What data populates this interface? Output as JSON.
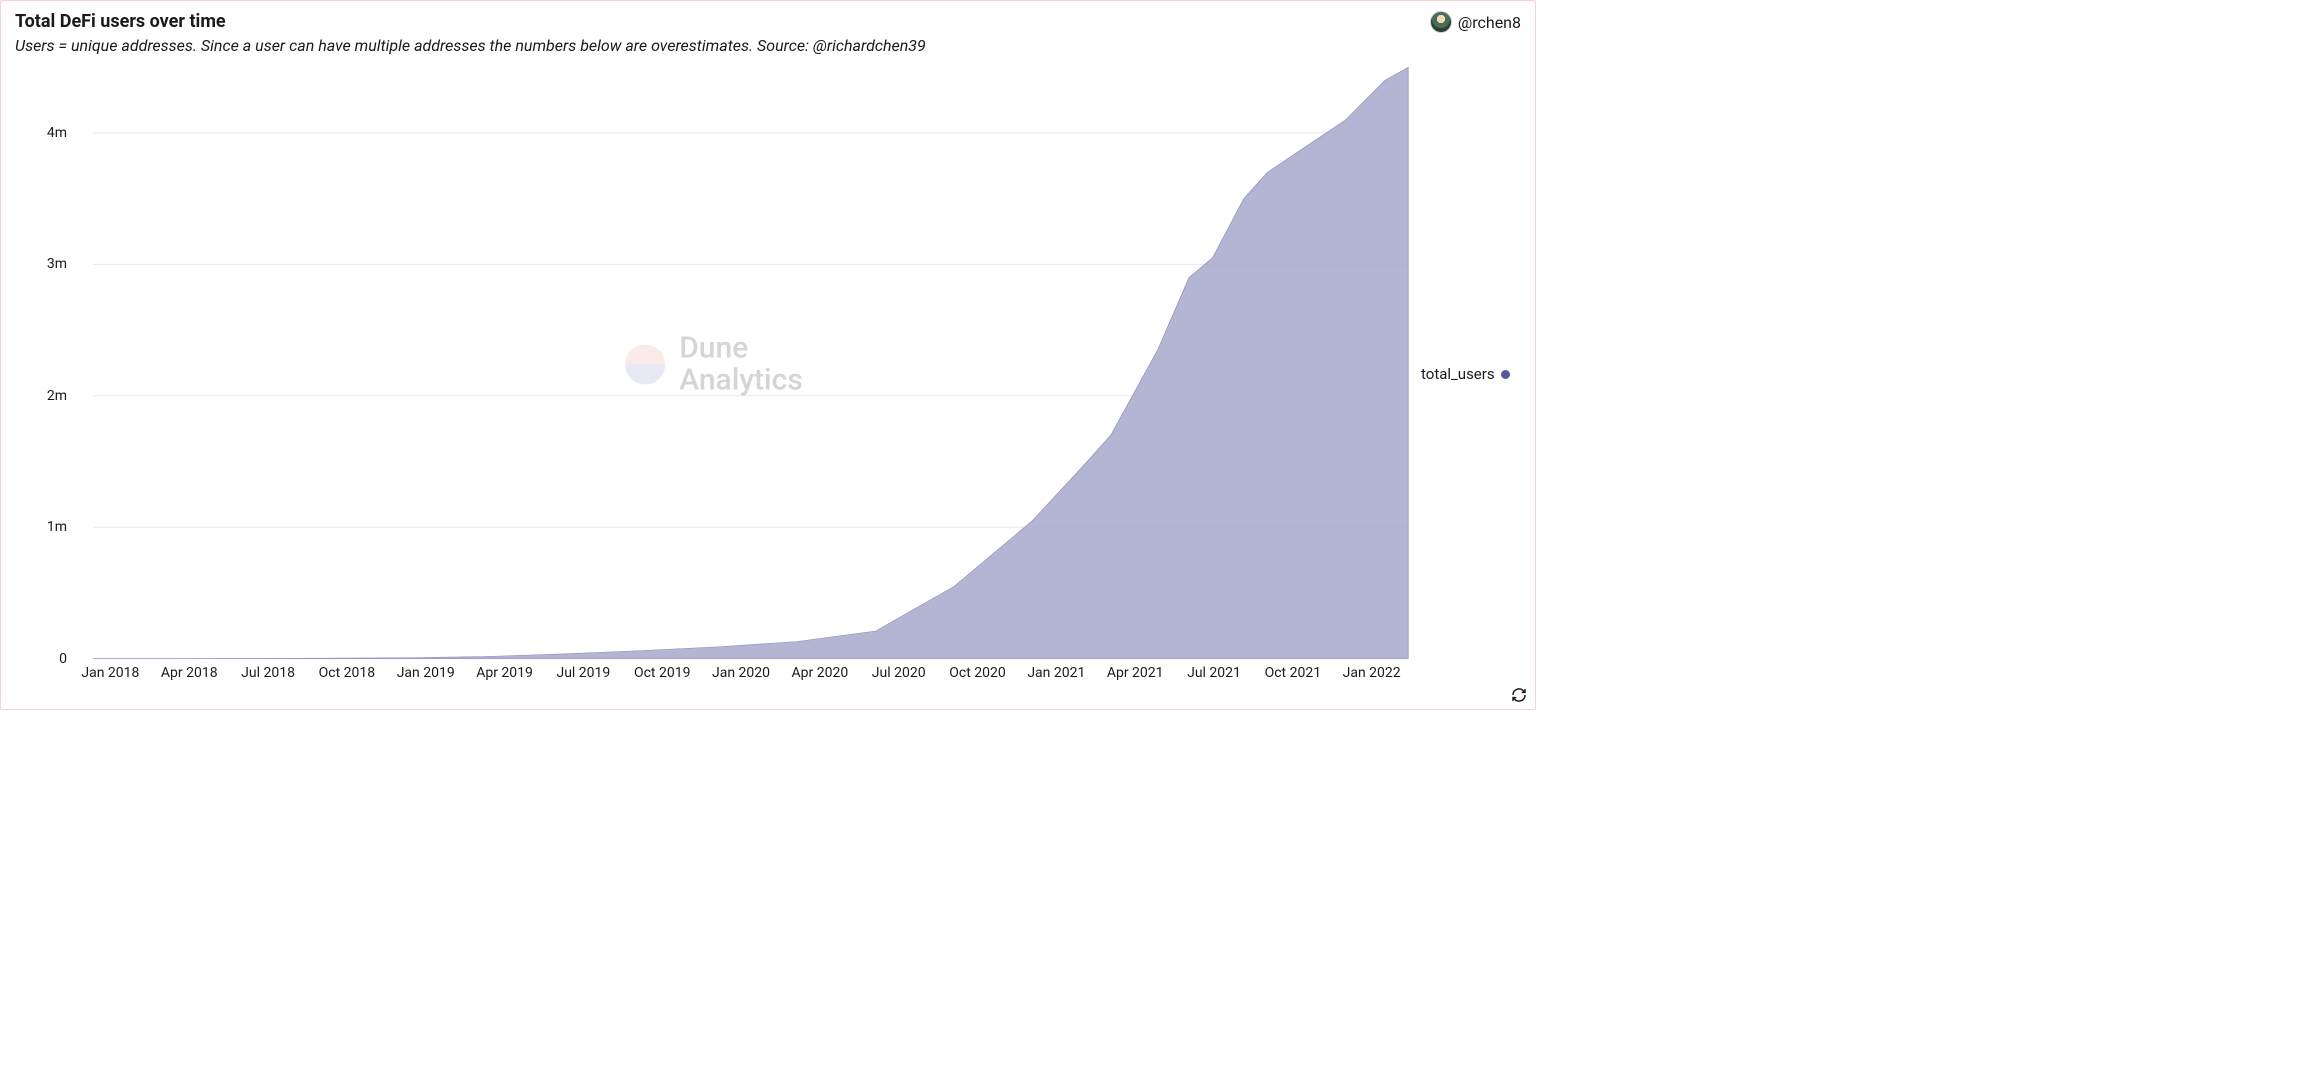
{
  "header": {
    "title": "Total DeFi users over time",
    "subtitle": "Users = unique addresses. Since a user can have multiple addresses the numbers below are overestimates. Source: @richardchen39",
    "author_handle": "@rchen8"
  },
  "watermark": {
    "line1": "Dune",
    "line2": "Analytics",
    "circle_top_color": "#f2b1a8",
    "circle_bottom_color": "#9fa8d0"
  },
  "legend": {
    "label": "total_users",
    "marker_color": "#58569f"
  },
  "chart": {
    "type": "area",
    "series_fill_color": "#a7a8ca",
    "series_fill_opacity": 0.85,
    "series_stroke_color": "#8b8bbd",
    "background_color": "#ffffff",
    "grid_color": "#e8e8e8",
    "axis_font_size": 14,
    "axis_color": "#1a1a1a",
    "y_axis": {
      "min": 0,
      "max": 4500000,
      "ticks": [
        {
          "value": 0,
          "label": "0"
        },
        {
          "value": 1000000,
          "label": "1m"
        },
        {
          "value": 2000000,
          "label": "2m"
        },
        {
          "value": 3000000,
          "label": "3m"
        },
        {
          "value": 4000000,
          "label": "4m"
        }
      ]
    },
    "x_axis": {
      "labels": [
        "Jan 2018",
        "Apr 2018",
        "Jul 2018",
        "Oct 2018",
        "Jan 2019",
        "Apr 2019",
        "Jul 2019",
        "Oct 2019",
        "Jan 2020",
        "Apr 2020",
        "Jul 2020",
        "Oct 2020",
        "Jan 2021",
        "Apr 2021",
        "Jul 2021",
        "Oct 2021",
        "Jan 2022"
      ]
    },
    "data_points": [
      {
        "xi": 0,
        "v": 0
      },
      {
        "xi": 1,
        "v": 500
      },
      {
        "xi": 2,
        "v": 1200
      },
      {
        "xi": 3,
        "v": 3000
      },
      {
        "xi": 4,
        "v": 6000
      },
      {
        "xi": 5,
        "v": 15000
      },
      {
        "xi": 6,
        "v": 35000
      },
      {
        "xi": 7,
        "v": 60000
      },
      {
        "xi": 8,
        "v": 90000
      },
      {
        "xi": 9,
        "v": 130000
      },
      {
        "xi": 10,
        "v": 210000
      },
      {
        "xi": 11,
        "v": 550000
      },
      {
        "xi": 12,
        "v": 1050000
      },
      {
        "xi": 12.7,
        "v": 1500000
      },
      {
        "xi": 13,
        "v": 1700000
      },
      {
        "xi": 13.6,
        "v": 2350000
      },
      {
        "xi": 14,
        "v": 2900000
      },
      {
        "xi": 14.3,
        "v": 3050000
      },
      {
        "xi": 14.7,
        "v": 3500000
      },
      {
        "xi": 15,
        "v": 3700000
      },
      {
        "xi": 15.5,
        "v": 3900000
      },
      {
        "xi": 16,
        "v": 4100000
      },
      {
        "xi": 16.5,
        "v": 4400000
      },
      {
        "xi": 16.8,
        "v": 4500000
      }
    ],
    "x_index_max": 16.8
  },
  "card_border_color": "#f8d3d0"
}
